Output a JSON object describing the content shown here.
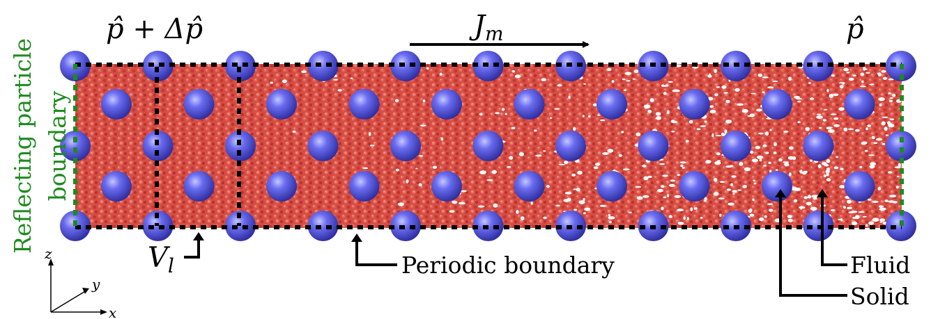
{
  "labels": {
    "pressure_inlet": "p̂ + Δp̂",
    "pressure_outlet": "p̂",
    "flux": "J",
    "flux_sub": "m",
    "volume": "V",
    "volume_sub": "l",
    "periodic_boundary": "Periodic boundary",
    "fluid": "Fluid",
    "solid": "Solid",
    "reflecting_line1": "Reflecting particle",
    "reflecting_line2": "boundary",
    "axis_z": "z",
    "axis_y": "y",
    "axis_x": "x"
  },
  "colors": {
    "fluid": "#d9534a",
    "fluid_dark": "#a83028",
    "fluid_light": "#f08a7a",
    "solid": "#5a5ce6",
    "solid_dark": "#2f2fa8",
    "solid_light": "#b8baff",
    "reflecting": "#1f8a1f",
    "boundary": "#000000"
  }
}
